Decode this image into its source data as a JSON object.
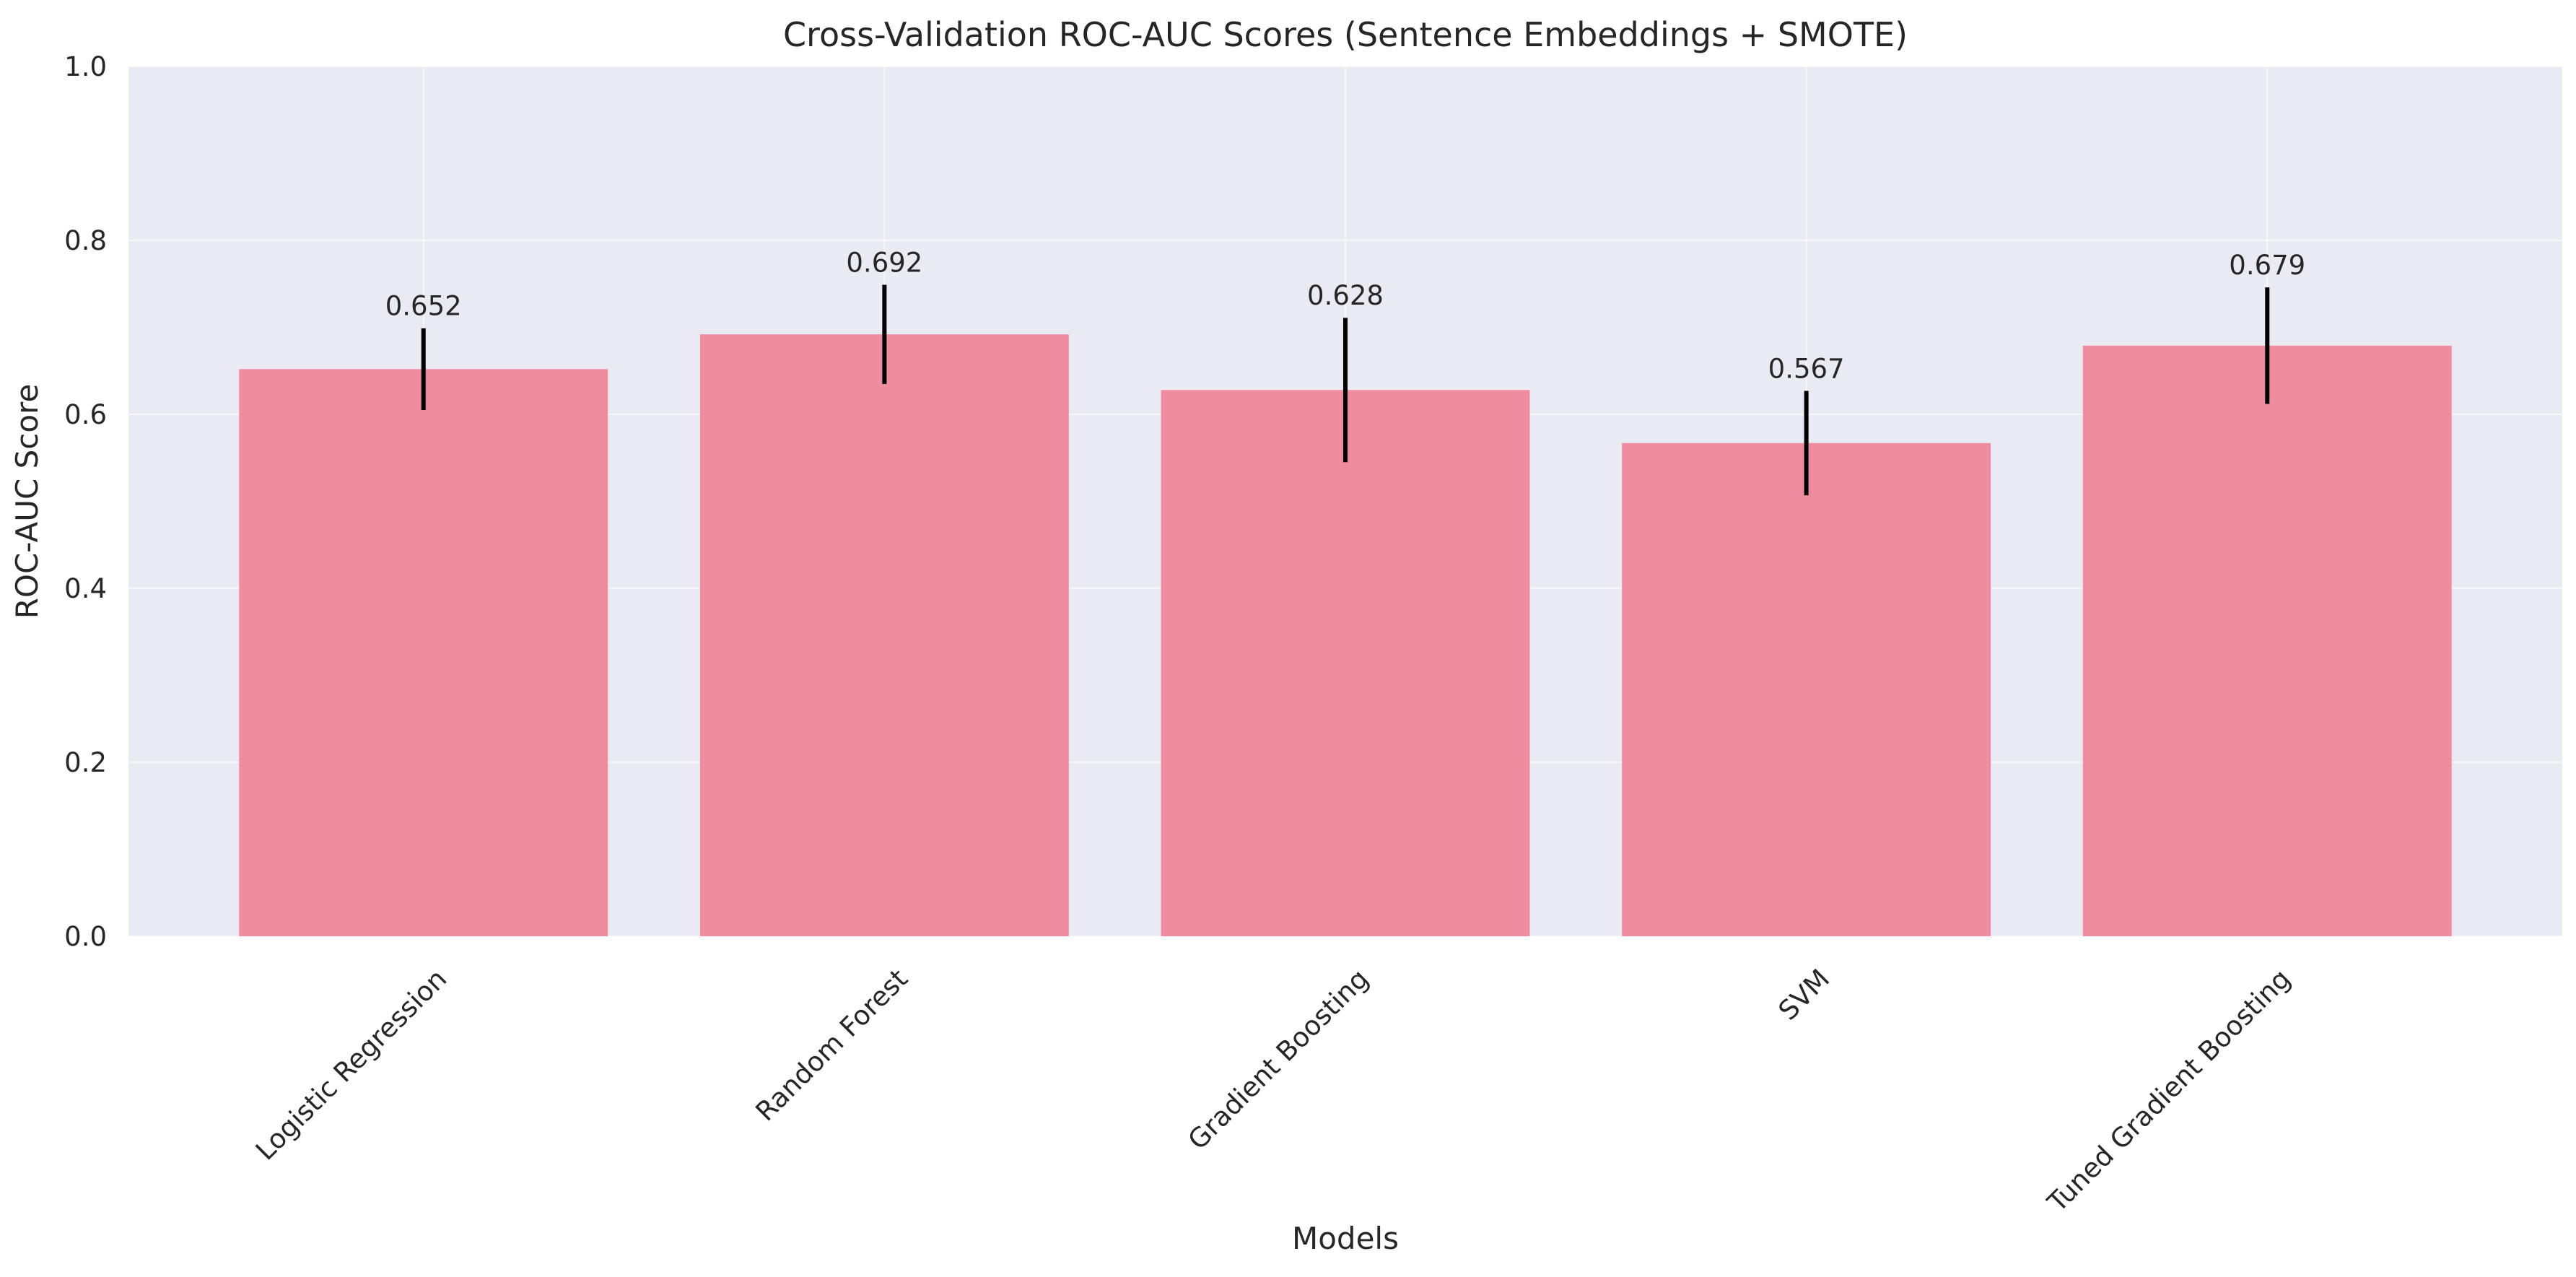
{
  "chart_data": {
    "type": "bar",
    "title": "Cross-Validation ROC-AUC Scores (Sentence Embeddings + SMOTE)",
    "xlabel": "Models",
    "ylabel": "ROC-AUC Score",
    "categories": [
      "Logistic Regression",
      "Random Forest",
      "Gradient Boosting",
      "SVM",
      "Tuned Gradient Boosting"
    ],
    "values": [
      0.652,
      0.692,
      0.628,
      0.567,
      0.679
    ],
    "value_labels": [
      "0.652",
      "0.692",
      "0.628",
      "0.567",
      "0.679"
    ],
    "errors": [
      0.047,
      0.057,
      0.083,
      0.06,
      0.067
    ],
    "ylim": [
      0,
      1.0
    ],
    "yticks": [
      0.0,
      0.2,
      0.4,
      0.6,
      0.8,
      1.0
    ],
    "ytick_labels": [
      "0.0",
      "0.2",
      "0.4",
      "0.6",
      "0.8",
      "1.0"
    ],
    "grid": true,
    "colors": {
      "bar": "#f08ca0",
      "error_bar": "#000000",
      "plot_background": "#eaeaf2",
      "grid": "#ffffff"
    }
  }
}
